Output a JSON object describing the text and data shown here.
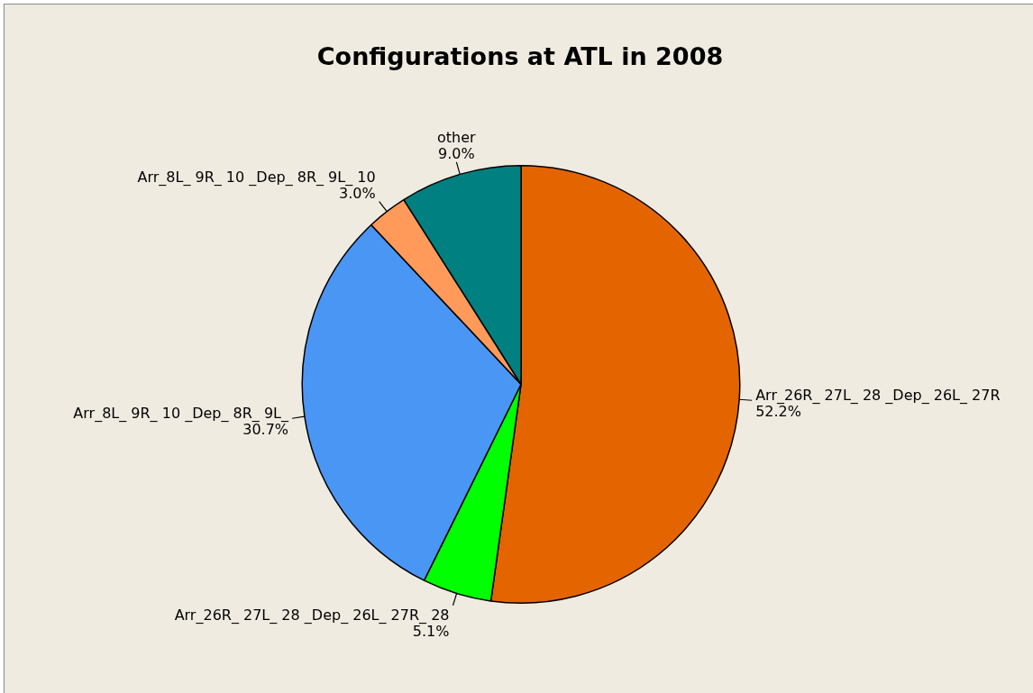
{
  "chart_data": {
    "type": "pie",
    "title": "Configurations at ATL in 2008",
    "categories": [
      "Arr_26R_ 27L_ 28 _Dep_ 26L_ 27R",
      "Arr_26R_ 27L_ 28 _Dep_ 26L_ 27R_ 28",
      "Arr_8L_ 9R_ 10 _Dep_ 8R_ 9L_",
      "Arr_8L_ 9R_ 10 _Dep_ 8R_ 9L_ 10",
      "other"
    ],
    "values": [
      52.2,
      5.1,
      30.7,
      3.0,
      9.0
    ],
    "value_labels": [
      "52.2%",
      "5.1%",
      "30.7%",
      "3.0%",
      "9.0%"
    ],
    "colors": [
      "#e46400",
      "#00ff00",
      "#4a96f5",
      "#ff9a5a",
      "#008080"
    ],
    "legend": false
  }
}
